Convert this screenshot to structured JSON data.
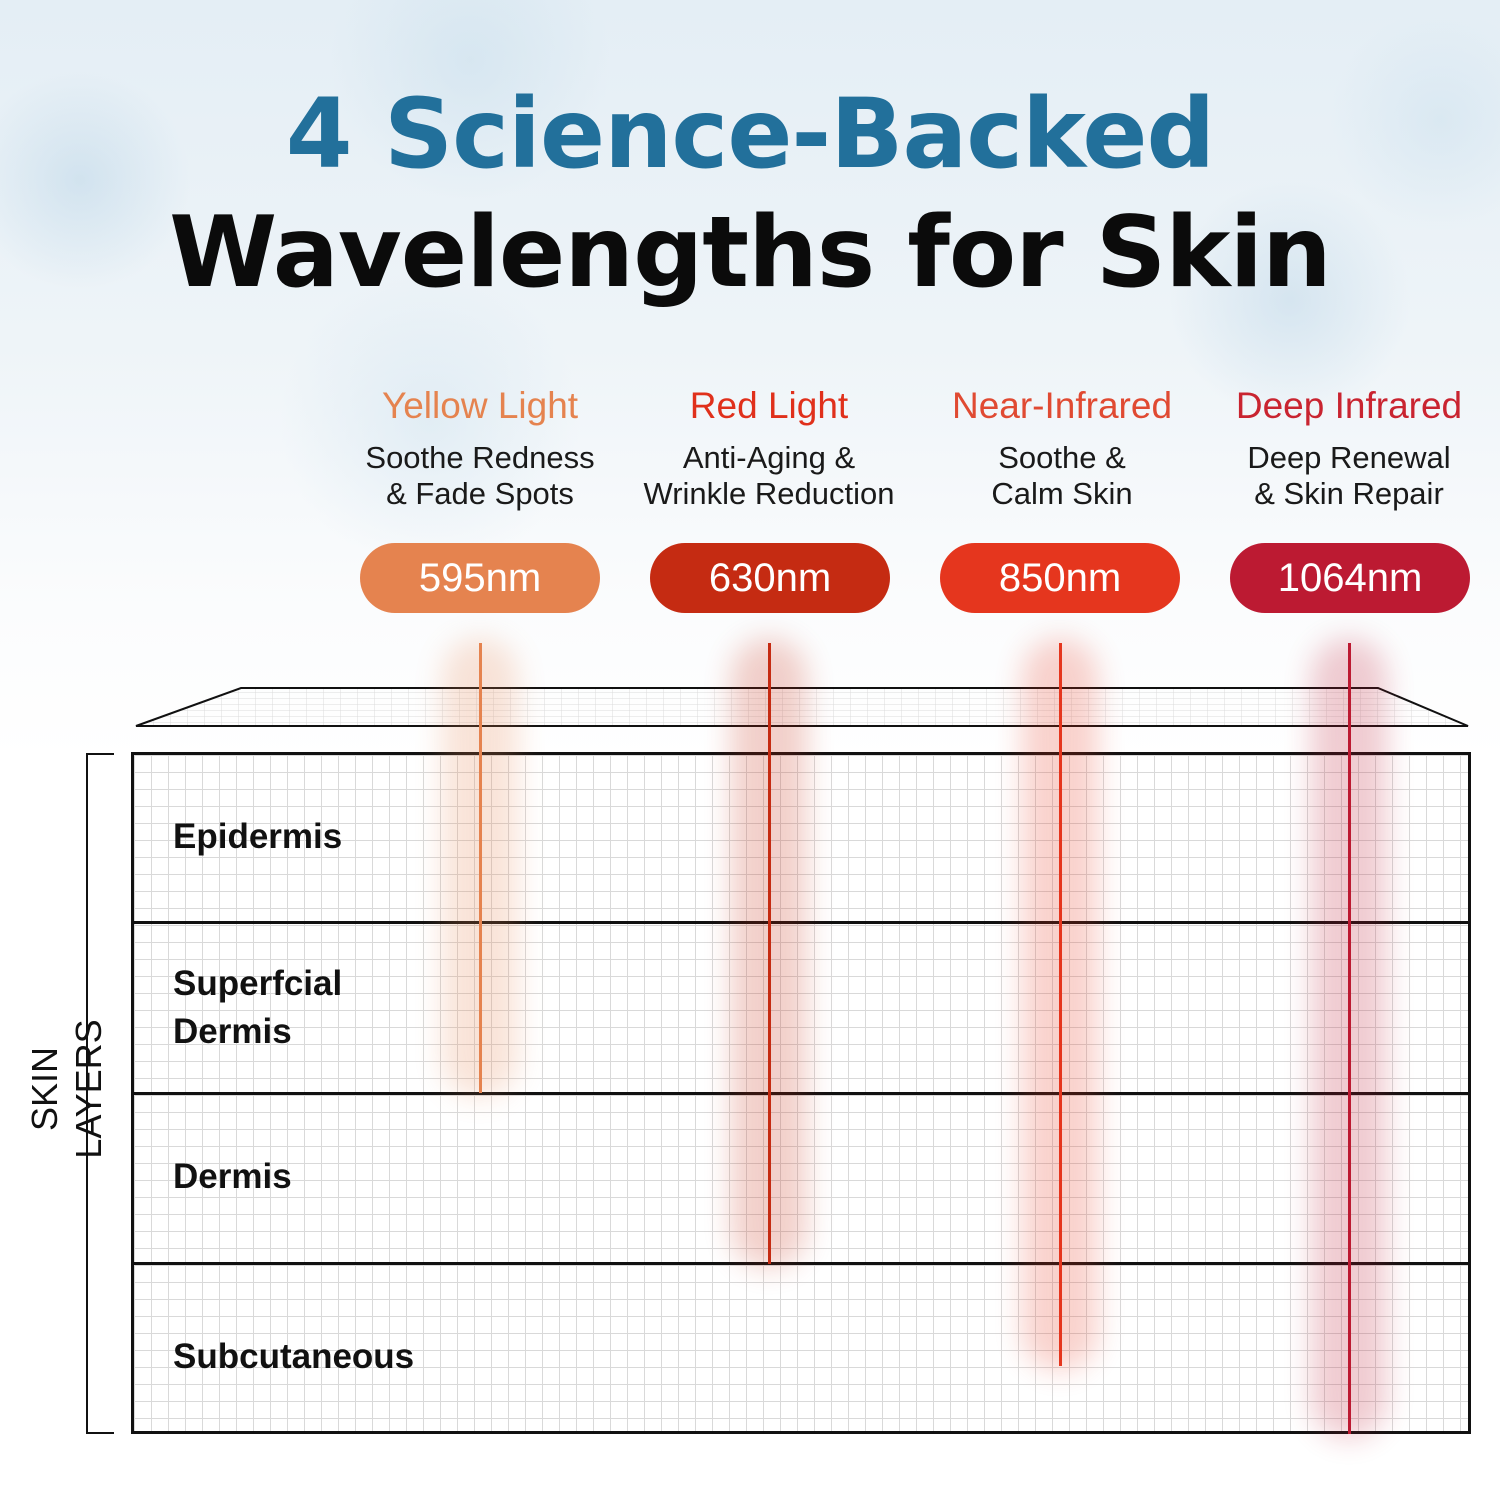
{
  "title": {
    "line1": "4 Science-Backed",
    "line2": "Wavelengths for Skin"
  },
  "side_label": "SKIN LAYERS",
  "wavelengths": [
    {
      "name": "Yellow Light",
      "desc_line1": "Soothe Redness",
      "desc_line2": "& Fade Spots",
      "nm": "595nm",
      "color": "#e5834f",
      "name_color": "#e5834f",
      "depth_layers": 2
    },
    {
      "name": "Red Light",
      "desc_line1": "Anti-Aging &",
      "desc_line2": "Wrinkle Reduction",
      "nm": "630nm",
      "color": "#c52b12",
      "name_color": "#e0301b",
      "depth_layers": 3
    },
    {
      "name": "Near-Infrared",
      "desc_line1": "Soothe &",
      "desc_line2": "Calm Skin",
      "nm": "850nm",
      "color": "#e5361e",
      "name_color": "#e04a32",
      "depth_layers": 3.6
    },
    {
      "name": "Deep Infrared",
      "desc_line1": "Deep Renewal",
      "desc_line2": "& Skin Repair",
      "nm": "1064nm",
      "color": "#bc1a32",
      "name_color": "#c92430",
      "depth_layers": 4
    }
  ],
  "layers": [
    {
      "line1": "Epidermis",
      "line2": ""
    },
    {
      "line1": "Superfcial",
      "line2": "Dermis"
    },
    {
      "line1": "Dermis",
      "line2": ""
    },
    {
      "line1": "Subcutaneous",
      "line2": ""
    }
  ]
}
